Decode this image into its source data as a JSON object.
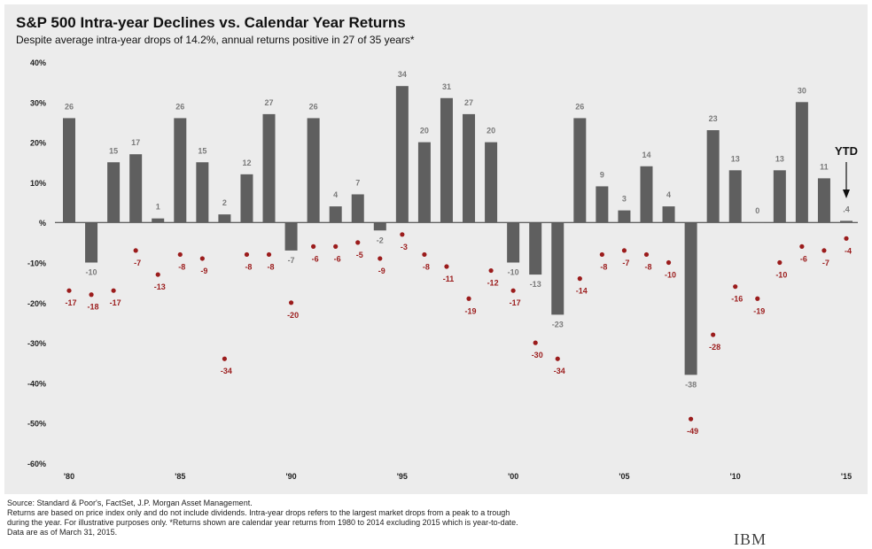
{
  "title": "S&P 500 Intra-year Declines vs. Calendar Year Returns",
  "subtitle": "Despite average intra-year drops of 14.2%, annual returns positive in 27 of 35 years*",
  "footer": {
    "line1": "Source: Standard & Poor's, FactSet, J.P. Morgan Asset Management.",
    "line2": "Returns are based on price index only and do not include dividends. Intra-year drops refers to the largest market drops from a peak to a trough",
    "line3": "during the year. For illustrative purposes only.  *Returns shown are calendar year returns from 1980 to 2014 excluding 2015 which is year-to-date.",
    "line4": "Data are as of March 31, 2015."
  },
  "brand": "IBM",
  "colors": {
    "bar": "#5f5f5f",
    "dot": "#9b1c1c",
    "background": "#ececec",
    "label": "#7a7a7a"
  },
  "chart_data": {
    "type": "bar",
    "title": "S&P 500 Intra-year Declines vs. Calendar Year Returns",
    "subtitle": "Despite average intra-year drops of 14.2%, annual returns positive in 27 of 35 years*",
    "x": [
      1980,
      1981,
      1982,
      1983,
      1984,
      1985,
      1986,
      1987,
      1988,
      1989,
      1990,
      1991,
      1992,
      1993,
      1994,
      1995,
      1996,
      1997,
      1998,
      1999,
      2000,
      2001,
      2002,
      2003,
      2004,
      2005,
      2006,
      2007,
      2008,
      2009,
      2010,
      2011,
      2012,
      2013,
      2014,
      2015
    ],
    "xtick_labels": [
      "'80",
      "'85",
      "'90",
      "'95",
      "'00",
      "'05",
      "'10",
      "'15"
    ],
    "xtick_positions": [
      1980,
      1985,
      1990,
      1995,
      2000,
      2005,
      2010,
      2015
    ],
    "ylim": [
      -60,
      40
    ],
    "yticks": [
      -60,
      -50,
      -40,
      -30,
      -20,
      -10,
      0,
      10,
      20,
      30,
      40
    ],
    "ytick_labels": [
      "-60%",
      "-50%",
      "-40%",
      "-30%",
      "-20%",
      "-10%",
      "%",
      "10%",
      "20%",
      "30%",
      "40%"
    ],
    "grid": false,
    "series": [
      {
        "kind": "bar",
        "values": [
          26,
          -10,
          15,
          17,
          1,
          26,
          15,
          2,
          12,
          27,
          -7,
          26,
          4,
          7,
          -2,
          34,
          20,
          31,
          27,
          20,
          -10,
          -13,
          -23,
          26,
          9,
          3,
          14,
          4,
          -38,
          23,
          13,
          0,
          13,
          30,
          11,
          0.4
        ],
        "labels": [
          "26",
          "-10",
          "15",
          "17",
          "1",
          "26",
          "15",
          "2",
          "12",
          "27",
          "-7",
          "26",
          "4",
          "7",
          "-2",
          "34",
          "20",
          "31",
          "27",
          "20",
          "-10",
          "-13",
          "-23",
          "26",
          "9",
          "3",
          "14",
          "4",
          "-38",
          "23",
          "13",
          "0",
          "13",
          "30",
          "11",
          ".4"
        ]
      },
      {
        "kind": "scatter",
        "values": [
          -17,
          -18,
          -17,
          -7,
          -13,
          -8,
          -9,
          -34,
          -8,
          -8,
          -20,
          -6,
          -6,
          -5,
          -9,
          -3,
          -8,
          -11,
          -19,
          -12,
          -17,
          -30,
          -34,
          -14,
          -8,
          -7,
          -8,
          -10,
          -49,
          -28,
          -16,
          -19,
          -10,
          -6,
          -7,
          -4
        ],
        "labels": [
          "-17",
          "-18",
          "-17",
          "-7",
          "-13",
          "-8",
          "-9",
          "-34",
          "-8",
          "-8",
          "-20",
          "-6",
          "-6",
          "-5",
          "-9",
          "-3",
          "-8",
          "-11",
          "-19",
          "-12",
          "-17",
          "-30",
          "-34",
          "-14",
          "-8",
          "-7",
          "-8",
          "-10",
          "-49",
          "-28",
          "-16",
          "-19",
          "-10",
          "-6",
          "-7",
          "-4"
        ]
      }
    ],
    "annotations": [
      {
        "text": "YTD",
        "year": 2015
      }
    ]
  }
}
